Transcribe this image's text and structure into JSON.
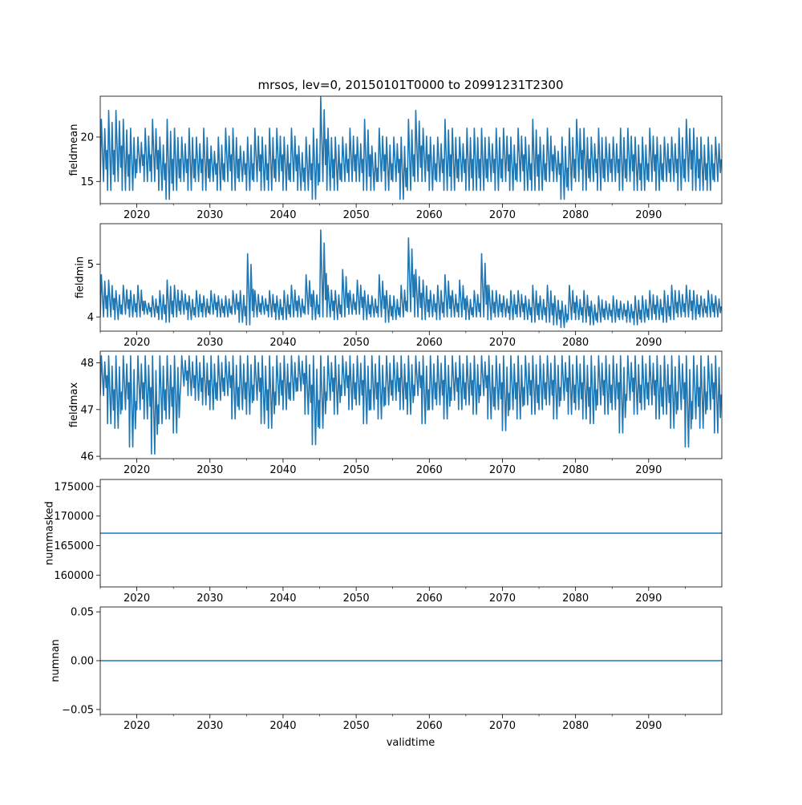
{
  "figure": {
    "title": "mrsos, lev=0, 20150101T0000 to 20991231T2300",
    "xlabel": "validtime"
  },
  "chart_data": [
    {
      "type": "line",
      "id": "fieldmean",
      "ylabel": "fieldmean",
      "xlim": [
        2015.0,
        2100.0
      ],
      "ylim": [
        12.5,
        24.6
      ],
      "yticks": [
        15,
        20
      ],
      "ytick_labels": [
        "15",
        "20"
      ],
      "xticks": [
        2020,
        2030,
        2040,
        2050,
        2060,
        2070,
        2080,
        2090
      ],
      "xtick_labels": [
        "2020",
        "2030",
        "2040",
        "2050",
        "2060",
        "2070",
        "2080",
        "2090"
      ],
      "color": "#1f77b4",
      "series": [
        {
          "name": "fieldmean",
          "x": [
            2015.0,
            2016.0,
            2017.0,
            2018.0,
            2019.0,
            2020.0,
            2021.0,
            2022.0,
            2023.0,
            2024.0,
            2025.0,
            2026.0,
            2027.0,
            2028.0,
            2029.0,
            2030.0,
            2031.0,
            2032.0,
            2033.0,
            2034.0,
            2035.0,
            2036.0,
            2037.0,
            2038.0,
            2039.0,
            2040.0,
            2041.0,
            2042.0,
            2043.0,
            2044.0,
            2045.0,
            2046.0,
            2047.0,
            2048.0,
            2049.0,
            2050.0,
            2051.0,
            2052.0,
            2053.0,
            2054.0,
            2055.0,
            2056.0,
            2057.0,
            2058.0,
            2059.0,
            2060.0,
            2061.0,
            2062.0,
            2063.0,
            2064.0,
            2065.0,
            2066.0,
            2067.0,
            2068.0,
            2069.0,
            2070.0,
            2071.0,
            2072.0,
            2073.0,
            2074.0,
            2075.0,
            2076.0,
            2077.0,
            2078.0,
            2079.0,
            2080.0,
            2081.0,
            2082.0,
            2083.0,
            2084.0,
            2085.0,
            2086.0,
            2087.0,
            2088.0,
            2089.0,
            2090.0,
            2091.0,
            2092.0,
            2093.0,
            2094.0,
            2095.0,
            2096.0,
            2097.0,
            2098.0,
            2099.0
          ],
          "ymax": [
            22,
            23,
            23,
            22,
            21,
            20,
            21,
            22,
            20,
            22,
            21,
            20,
            21,
            20,
            21,
            19,
            20,
            21,
            21,
            19,
            20,
            21,
            20,
            21,
            21,
            20,
            21,
            19,
            20,
            21,
            24.5,
            21,
            20,
            20,
            21,
            20,
            22,
            19,
            21,
            20,
            20,
            20,
            22,
            23,
            21,
            20,
            20,
            22,
            21,
            20,
            21,
            21,
            21,
            20,
            21,
            21,
            20,
            21,
            20,
            22,
            20,
            21,
            19,
            20,
            21,
            22,
            21,
            20,
            21,
            20,
            20,
            21,
            21,
            20,
            20,
            21,
            20,
            20,
            20,
            21,
            22,
            21,
            20,
            20,
            20
          ],
          "ymin": [
            15,
            14,
            15,
            14,
            14,
            16,
            15,
            15,
            14,
            13,
            14,
            15,
            14,
            15,
            14,
            15,
            14,
            15,
            14,
            15,
            14,
            15,
            14,
            14,
            15,
            14,
            15,
            14,
            14,
            13,
            15,
            14,
            14,
            15,
            15,
            15,
            14,
            14,
            15,
            14,
            15,
            13,
            14,
            15,
            15,
            14,
            15,
            14,
            14,
            15,
            14,
            14,
            14,
            15,
            14,
            15,
            14,
            15,
            14,
            14,
            14,
            15,
            15,
            13,
            14,
            15,
            14,
            15,
            14,
            15,
            15,
            14,
            15,
            14,
            14,
            15,
            14,
            15,
            15,
            14,
            15,
            14,
            14,
            14,
            15
          ]
        }
      ]
    },
    {
      "type": "line",
      "id": "fieldmin",
      "ylabel": "fieldmin",
      "xlim": [
        2015.0,
        2100.0
      ],
      "ylim": [
        3.73,
        5.77
      ],
      "yticks": [
        4,
        5
      ],
      "ytick_labels": [
        "4",
        "5"
      ],
      "xticks": [
        2020,
        2030,
        2040,
        2050,
        2060,
        2070,
        2080,
        2090
      ],
      "xtick_labels": [
        "2020",
        "2030",
        "2040",
        "2050",
        "2060",
        "2070",
        "2080",
        "2090"
      ],
      "color": "#1f77b4",
      "series": [
        {
          "name": "fieldmin",
          "x": [
            2015.0,
            2016.0,
            2017.0,
            2018.0,
            2019.0,
            2020.0,
            2021.0,
            2022.0,
            2023.0,
            2024.0,
            2025.0,
            2026.0,
            2027.0,
            2028.0,
            2029.0,
            2030.0,
            2031.0,
            2032.0,
            2033.0,
            2034.0,
            2035.0,
            2036.0,
            2037.0,
            2038.0,
            2039.0,
            2040.0,
            2041.0,
            2042.0,
            2043.0,
            2044.0,
            2045.0,
            2046.0,
            2047.0,
            2048.0,
            2049.0,
            2050.0,
            2051.0,
            2052.0,
            2053.0,
            2054.0,
            2055.0,
            2056.0,
            2057.0,
            2058.0,
            2059.0,
            2060.0,
            2061.0,
            2062.0,
            2063.0,
            2064.0,
            2065.0,
            2066.0,
            2067.0,
            2068.0,
            2069.0,
            2070.0,
            2071.0,
            2072.0,
            2073.0,
            2074.0,
            2075.0,
            2076.0,
            2077.0,
            2078.0,
            2079.0,
            2080.0,
            2081.0,
            2082.0,
            2083.0,
            2084.0,
            2085.0,
            2086.0,
            2087.0,
            2088.0,
            2089.0,
            2090.0,
            2091.0,
            2092.0,
            2093.0,
            2094.0,
            2095.0,
            2096.0,
            2097.0,
            2098.0,
            2099.0
          ],
          "ymax": [
            4.8,
            4.7,
            4.5,
            4.6,
            4.5,
            4.6,
            4.3,
            4.4,
            4.5,
            4.7,
            4.6,
            4.5,
            4.4,
            4.5,
            4.4,
            4.5,
            4.4,
            4.4,
            4.5,
            4.5,
            5.2,
            4.5,
            4.4,
            4.5,
            4.4,
            4.5,
            4.6,
            4.4,
            4.8,
            4.5,
            5.65,
            4.6,
            4.5,
            4.9,
            4.5,
            4.7,
            4.5,
            4.4,
            4.8,
            4.5,
            4.4,
            4.6,
            5.5,
            4.9,
            4.7,
            4.5,
            4.6,
            4.8,
            4.5,
            4.7,
            4.4,
            4.5,
            5.2,
            4.6,
            4.5,
            4.4,
            4.5,
            4.5,
            4.4,
            4.6,
            4.4,
            4.6,
            4.4,
            4.3,
            4.6,
            4.4,
            4.5,
            4.3,
            4.4,
            4.3,
            4.4,
            4.3,
            4.3,
            4.4,
            4.4,
            4.5,
            4.4,
            4.5,
            4.6,
            4.5,
            4.6,
            4.5,
            4.4,
            4.5,
            4.4
          ],
          "ymin": [
            4.0,
            4.0,
            3.95,
            4.05,
            4.0,
            4.0,
            4.05,
            4.0,
            3.95,
            3.9,
            4.0,
            4.05,
            3.95,
            4.0,
            4.0,
            4.05,
            4.0,
            4.0,
            4.05,
            3.9,
            3.85,
            4.0,
            4.05,
            4.0,
            3.95,
            3.95,
            4.0,
            4.0,
            4.05,
            3.95,
            4.0,
            4.0,
            3.95,
            4.0,
            4.05,
            4.05,
            3.95,
            4.0,
            4.0,
            3.9,
            3.95,
            4.0,
            4.1,
            4.0,
            3.95,
            4.0,
            3.95,
            4.0,
            4.0,
            4.0,
            3.95,
            4.0,
            4.0,
            3.95,
            4.0,
            4.0,
            3.95,
            4.0,
            3.95,
            3.9,
            3.95,
            3.9,
            3.85,
            3.8,
            3.95,
            3.95,
            3.9,
            3.85,
            3.9,
            3.95,
            3.9,
            3.95,
            3.9,
            3.85,
            3.9,
            3.95,
            3.95,
            3.9,
            3.95,
            4.0,
            4.0,
            3.95,
            4.0,
            4.0,
            4.0
          ]
        }
      ]
    },
    {
      "type": "line",
      "id": "fieldmax",
      "ylabel": "fieldmax",
      "xlim": [
        2015.0,
        2100.0
      ],
      "ylim": [
        45.95,
        48.25
      ],
      "yticks": [
        46,
        47,
        48
      ],
      "ytick_labels": [
        "46",
        "47",
        "48"
      ],
      "xticks": [
        2020,
        2030,
        2040,
        2050,
        2060,
        2070,
        2080,
        2090
      ],
      "xtick_labels": [
        "2020",
        "2030",
        "2040",
        "2050",
        "2060",
        "2070",
        "2080",
        "2090"
      ],
      "color": "#1f77b4",
      "series": [
        {
          "name": "fieldmax",
          "x": [
            2015.0,
            2016.0,
            2017.0,
            2018.0,
            2019.0,
            2020.0,
            2021.0,
            2022.0,
            2023.0,
            2024.0,
            2025.0,
            2026.0,
            2027.0,
            2028.0,
            2029.0,
            2030.0,
            2031.0,
            2032.0,
            2033.0,
            2034.0,
            2035.0,
            2036.0,
            2037.0,
            2038.0,
            2039.0,
            2040.0,
            2041.0,
            2042.0,
            2043.0,
            2044.0,
            2045.0,
            2046.0,
            2047.0,
            2048.0,
            2049.0,
            2050.0,
            2051.0,
            2052.0,
            2053.0,
            2054.0,
            2055.0,
            2056.0,
            2057.0,
            2058.0,
            2059.0,
            2060.0,
            2061.0,
            2062.0,
            2063.0,
            2064.0,
            2065.0,
            2066.0,
            2067.0,
            2068.0,
            2069.0,
            2070.0,
            2071.0,
            2072.0,
            2073.0,
            2074.0,
            2075.0,
            2076.0,
            2077.0,
            2078.0,
            2079.0,
            2080.0,
            2081.0,
            2082.0,
            2083.0,
            2084.0,
            2085.0,
            2086.0,
            2087.0,
            2088.0,
            2089.0,
            2090.0,
            2091.0,
            2092.0,
            2093.0,
            2094.0,
            2095.0,
            2096.0,
            2097.0,
            2098.0,
            2099.0
          ],
          "ymax": [
            48.15,
            48.15,
            48.15,
            48.15,
            48.15,
            48.15,
            48.15,
            48.15,
            48.15,
            48.15,
            48.15,
            48.15,
            48.15,
            48.15,
            48.15,
            48.15,
            48.15,
            48.15,
            48.15,
            48.15,
            48.15,
            48.15,
            48.15,
            48.15,
            48.15,
            48.15,
            48.15,
            48.15,
            48.15,
            48.15,
            48.15,
            48.15,
            48.15,
            48.15,
            48.15,
            48.15,
            48.15,
            48.15,
            48.15,
            48.15,
            48.15,
            48.15,
            48.15,
            48.15,
            48.15,
            48.15,
            48.15,
            48.15,
            48.15,
            48.15,
            48.15,
            48.15,
            48.15,
            48.15,
            48.15,
            48.15,
            48.15,
            48.15,
            48.15,
            48.15,
            48.15,
            48.15,
            48.15,
            48.15,
            48.15,
            48.15,
            48.15,
            48.15,
            48.15,
            48.15,
            48.15,
            48.15,
            48.15,
            48.15,
            48.15,
            48.15,
            48.15,
            48.15,
            48.15,
            48.15,
            48.15,
            48.15,
            48.15,
            48.15,
            48.15
          ],
          "ymin": [
            47.3,
            46.7,
            46.6,
            47.0,
            46.2,
            47.0,
            46.8,
            46.05,
            46.7,
            46.8,
            46.5,
            47.5,
            47.3,
            47.2,
            47.1,
            47.0,
            47.2,
            47.3,
            46.8,
            47.0,
            46.9,
            47.2,
            46.7,
            46.6,
            47.1,
            47.0,
            47.2,
            47.4,
            46.9,
            46.25,
            46.6,
            47.2,
            46.9,
            47.3,
            47.0,
            47.1,
            46.7,
            47.0,
            46.8,
            47.1,
            47.2,
            47.0,
            46.9,
            47.3,
            46.7,
            47.0,
            47.1,
            46.8,
            47.2,
            47.0,
            47.1,
            46.9,
            47.3,
            46.8,
            47.0,
            46.55,
            47.0,
            46.8,
            47.1,
            46.9,
            47.0,
            47.1,
            46.8,
            47.2,
            46.9,
            47.0,
            46.8,
            46.7,
            47.1,
            46.9,
            47.0,
            46.5,
            47.2,
            46.9,
            47.0,
            47.1,
            46.8,
            46.9,
            46.6,
            47.0,
            46.2,
            46.8,
            46.6,
            47.0,
            46.5
          ]
        }
      ]
    },
    {
      "type": "line",
      "id": "nummasked",
      "ylabel": "nummasked",
      "xlim": [
        2015.0,
        2100.0
      ],
      "ylim": [
        158000,
        176200
      ],
      "yticks": [
        160000,
        165000,
        170000,
        175000
      ],
      "ytick_labels": [
        "160000",
        "165000",
        "170000",
        "175000"
      ],
      "xticks": [
        2020,
        2030,
        2040,
        2050,
        2060,
        2070,
        2080,
        2090
      ],
      "xtick_labels": [
        "2020",
        "2030",
        "2040",
        "2050",
        "2060",
        "2070",
        "2080",
        "2090"
      ],
      "color": "#1f77b4",
      "series": [
        {
          "name": "nummasked",
          "x": [
            2015.0,
            2100.0
          ],
          "y": [
            167100,
            167100
          ]
        }
      ]
    },
    {
      "type": "line",
      "id": "numnan",
      "ylabel": "numnan",
      "xlim": [
        2015.0,
        2100.0
      ],
      "ylim": [
        -0.055,
        0.055
      ],
      "yticks": [
        -0.05,
        0.0,
        0.05
      ],
      "ytick_labels": [
        "−0.05",
        "0.00",
        "0.05"
      ],
      "xticks": [
        2020,
        2030,
        2040,
        2050,
        2060,
        2070,
        2080,
        2090
      ],
      "xtick_labels": [
        "2020",
        "2030",
        "2040",
        "2050",
        "2060",
        "2070",
        "2080",
        "2090"
      ],
      "color": "#1f77b4",
      "series": [
        {
          "name": "numnan",
          "x": [
            2015.0,
            2100.0
          ],
          "y": [
            0.0,
            0.0
          ]
        }
      ]
    }
  ]
}
